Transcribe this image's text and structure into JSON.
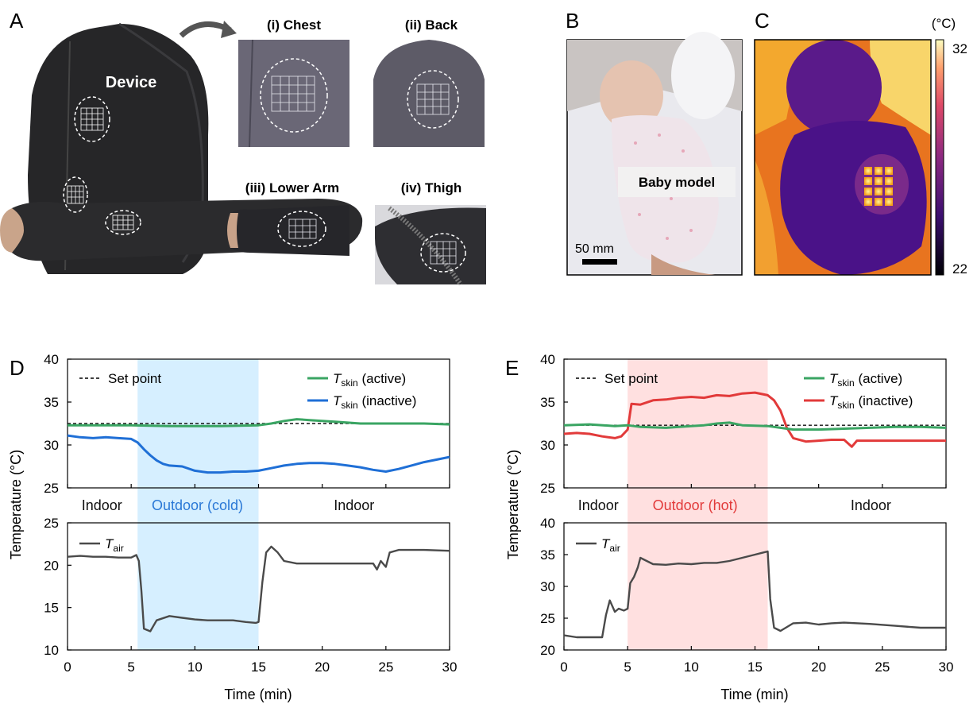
{
  "panels": {
    "A": {
      "letter": "A",
      "device_label": "Device",
      "sub_labels": [
        "(i) Chest",
        "(ii) Back",
        "(iii) Lower Arm",
        "(iv) Thigh"
      ]
    },
    "B": {
      "letter": "B",
      "label": "Baby model",
      "scale_bar": "50 mm"
    },
    "C": {
      "letter": "C",
      "unit": "(°C)",
      "scale_max": "32",
      "scale_min": "22"
    }
  },
  "colors": {
    "set_point": "#111111",
    "active": "#3aa563",
    "inactive_D": "#1f6fd6",
    "inactive_E": "#e23a3a",
    "air": "#4a4a4a",
    "cold_shade": "#d6efff",
    "hot_shade": "#ffe0e0",
    "label_cold": "#2a78d6",
    "label_hot": "#e23a3a"
  },
  "chart_data": [
    {
      "id": "D",
      "letter": "D",
      "type": "line",
      "xlabel": "Time (min)",
      "ylabel": "Temperature (°C)",
      "xlim": [
        0,
        30
      ],
      "xticks": [
        0,
        5,
        10,
        15,
        20,
        25,
        30
      ],
      "shade": [
        5.5,
        15
      ],
      "phase_labels": [
        {
          "text": "Indoor",
          "x": 2.7,
          "style": "normal"
        },
        {
          "text": "Outdoor (cold)",
          "x": 10.2,
          "style": "cold"
        },
        {
          "text": "Indoor",
          "x": 22.5,
          "style": "normal"
        }
      ],
      "top": {
        "ylim": [
          25,
          40
        ],
        "yticks": [
          25,
          30,
          35,
          40
        ],
        "set_point": 32.5,
        "legend": {
          "set_point": "Set point",
          "active": "(active)",
          "inactive": "(inactive)",
          "T": "T",
          "sub": "skin"
        },
        "active": {
          "x": [
            0,
            5,
            8,
            12,
            15,
            16,
            17,
            18,
            19,
            21,
            23,
            26,
            28,
            30
          ],
          "y": [
            32.3,
            32.3,
            32.2,
            32.2,
            32.3,
            32.5,
            32.8,
            33.0,
            32.9,
            32.7,
            32.5,
            32.5,
            32.5,
            32.4
          ]
        },
        "inactive": {
          "x": [
            0,
            1,
            2,
            3,
            4,
            5,
            5.5,
            6,
            6.5,
            7,
            7.5,
            8,
            9,
            10,
            11,
            12,
            13,
            14,
            15,
            16,
            17,
            18,
            19,
            20,
            21,
            22,
            23,
            24,
            25,
            26,
            27,
            28,
            29,
            30
          ],
          "y": [
            31.1,
            30.9,
            30.8,
            30.9,
            30.8,
            30.7,
            30.3,
            29.5,
            28.8,
            28.2,
            27.8,
            27.6,
            27.5,
            27.0,
            26.8,
            26.8,
            26.9,
            26.9,
            27.0,
            27.3,
            27.6,
            27.8,
            27.9,
            27.9,
            27.8,
            27.6,
            27.4,
            27.1,
            26.9,
            27.2,
            27.6,
            28.0,
            28.3,
            28.6
          ]
        }
      },
      "bottom": {
        "ylim": [
          10,
          25
        ],
        "yticks": [
          10,
          15,
          20,
          25
        ],
        "legend": {
          "T": "T",
          "sub": "air"
        },
        "air": {
          "x": [
            0,
            1,
            2,
            3,
            4,
            5,
            5.4,
            5.6,
            5.8,
            6,
            6.5,
            7,
            8,
            9,
            10,
            11,
            12,
            13,
            14,
            14.8,
            15,
            15.3,
            15.6,
            16,
            16.5,
            17,
            18,
            20,
            22,
            24,
            24.3,
            24.6,
            25,
            25.3,
            26,
            28,
            30
          ],
          "y": [
            21,
            21.1,
            21.0,
            21.0,
            20.9,
            20.9,
            21.2,
            20.5,
            17,
            12.5,
            12.2,
            13.5,
            14,
            13.8,
            13.6,
            13.5,
            13.5,
            13.5,
            13.3,
            13.2,
            13.3,
            18,
            21.5,
            22.2,
            21.5,
            20.5,
            20.2,
            20.2,
            20.2,
            20.2,
            19.5,
            20.5,
            19.8,
            21.5,
            21.8,
            21.8,
            21.7
          ]
        }
      }
    },
    {
      "id": "E",
      "letter": "E",
      "type": "line",
      "xlabel": "Time (min)",
      "ylabel": "Temperature (°C)",
      "xlim": [
        0,
        30
      ],
      "xticks": [
        0,
        5,
        10,
        15,
        20,
        25,
        30
      ],
      "shade": [
        5,
        16
      ],
      "phase_labels": [
        {
          "text": "Indoor",
          "x": 2.7,
          "style": "normal"
        },
        {
          "text": "Outdoor (hot)",
          "x": 10.3,
          "style": "hot"
        },
        {
          "text": "Indoor",
          "x": 24.1,
          "style": "normal"
        }
      ],
      "top": {
        "ylim": [
          25,
          40
        ],
        "yticks": [
          25,
          30,
          35,
          40
        ],
        "set_point": 32.3,
        "legend": {
          "set_point": "Set point",
          "active": "(active)",
          "inactive": "(inactive)",
          "T": "T",
          "sub": "skin"
        },
        "active": {
          "x": [
            0,
            2,
            4,
            5,
            6,
            8,
            10,
            11,
            12,
            13,
            14,
            16,
            17,
            18,
            20,
            22,
            24,
            26,
            28,
            30
          ],
          "y": [
            32.3,
            32.4,
            32.2,
            32.3,
            32.1,
            32.0,
            32.2,
            32.3,
            32.5,
            32.6,
            32.3,
            32.2,
            32.0,
            31.8,
            31.8,
            31.9,
            32.0,
            32.1,
            32.1,
            32.0
          ]
        },
        "inactive": {
          "x": [
            0,
            1,
            2,
            3,
            4,
            4.5,
            5,
            5.3,
            6,
            7,
            8,
            9,
            10,
            11,
            12,
            13,
            14,
            15,
            16,
            16.5,
            17,
            17.5,
            18,
            19,
            20,
            21,
            22,
            22.6,
            23,
            25,
            27,
            30
          ],
          "y": [
            31.3,
            31.4,
            31.3,
            31.0,
            30.8,
            31.0,
            31.8,
            34.8,
            34.7,
            35.2,
            35.3,
            35.5,
            35.6,
            35.5,
            35.8,
            35.7,
            36.0,
            36.1,
            35.8,
            35.2,
            34.0,
            32.0,
            30.8,
            30.4,
            30.5,
            30.6,
            30.6,
            29.8,
            30.5,
            30.5,
            30.5,
            30.5
          ]
        }
      },
      "bottom": {
        "ylim": [
          20,
          40
        ],
        "yticks": [
          20,
          25,
          30,
          35,
          40
        ],
        "legend": {
          "T": "T",
          "sub": "air"
        },
        "air": {
          "x": [
            0,
            1,
            2,
            3,
            3.3,
            3.6,
            4,
            4.3,
            4.7,
            5,
            5.2,
            5.5,
            5.8,
            6,
            6.5,
            7,
            8,
            9,
            10,
            11,
            12,
            13,
            14,
            15,
            15.6,
            16,
            16.2,
            16.5,
            17,
            18,
            19,
            20,
            21,
            22,
            24,
            26,
            28,
            30
          ],
          "y": [
            22.3,
            22,
            22,
            22,
            25.5,
            27.8,
            26,
            26.5,
            26.2,
            26.5,
            30.5,
            31.5,
            33,
            34.5,
            34,
            33.5,
            33.4,
            33.6,
            33.5,
            33.7,
            33.7,
            34,
            34.5,
            35,
            35.3,
            35.5,
            28,
            23.5,
            23,
            24.2,
            24.3,
            24,
            24.2,
            24.3,
            24.1,
            23.8,
            23.5,
            23.5
          ]
        }
      }
    }
  ]
}
